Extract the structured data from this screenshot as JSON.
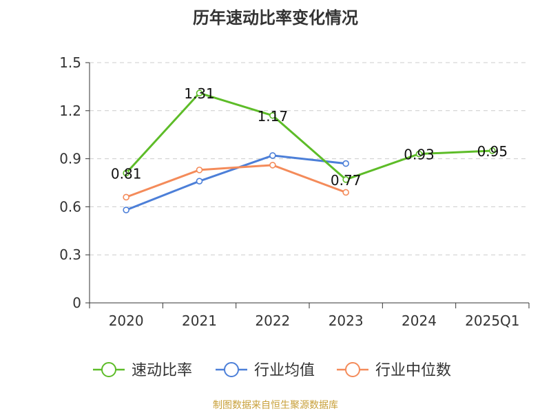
{
  "chart_data": {
    "type": "line",
    "title": "历年速动比率变化情况",
    "categories": [
      "2020",
      "2021",
      "2022",
      "2023",
      "2024",
      "2025Q1"
    ],
    "ylim": [
      0,
      1.5
    ],
    "yticks": [
      "0",
      "0.3",
      "0.6",
      "0.9",
      "1.2",
      "1.5"
    ],
    "ytick_values": [
      0,
      0.3,
      0.6,
      0.9,
      1.2,
      1.5
    ],
    "grid": true,
    "legend_position": "bottom",
    "series": [
      {
        "name": "速动比率",
        "color": "#5dbc28",
        "values": [
          0.81,
          1.31,
          1.17,
          0.77,
          0.93,
          0.95
        ],
        "labels": [
          "0.81",
          "1.31",
          "1.17",
          "0.77",
          "0.93",
          "0.95"
        ]
      },
      {
        "name": "行业均值",
        "color": "#4c7fd8",
        "values": [
          0.58,
          0.76,
          0.92,
          0.87,
          null,
          null
        ]
      },
      {
        "name": "行业中位数",
        "color": "#f48b5a",
        "values": [
          0.66,
          0.83,
          0.86,
          0.69,
          null,
          null
        ]
      }
    ]
  },
  "footer": {
    "source": "制图数据来自恒生聚源数据库"
  }
}
